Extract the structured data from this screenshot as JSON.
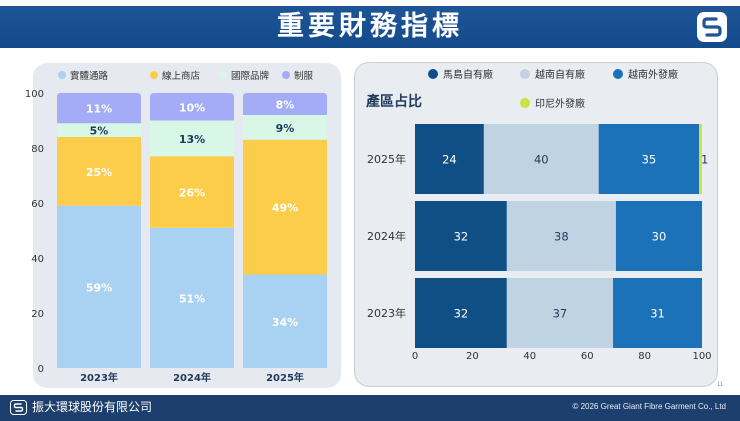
{
  "header": {
    "title": "重要財務指標"
  },
  "footer": {
    "company": "振大環球股份有限公司",
    "copyright": "© 2026 Great Giant Fibre Garment Co., Ltd",
    "page_number": "11"
  },
  "colors": {
    "header": "#1d5597",
    "footer": "#1c3f6e",
    "panel": "#e6eaf0"
  },
  "chart_data": [
    {
      "type": "bar",
      "stacked": true,
      "orientation": "vertical",
      "title": "",
      "xlabel": "",
      "ylabel": "",
      "ylim": [
        0,
        100
      ],
      "yticks": [
        "0",
        "20",
        "40",
        "60",
        "80",
        "100"
      ],
      "categories": [
        "2023年",
        "2024年",
        "2025年"
      ],
      "legend_position": "top",
      "series": [
        {
          "name": "實體通路",
          "color": "#a9d1f2",
          "values": [
            59,
            51,
            34
          ],
          "labels": [
            "59%",
            "51%",
            "34%"
          ]
        },
        {
          "name": "線上商店",
          "color": "#fbcd4b",
          "values": [
            25,
            26,
            49
          ],
          "labels": [
            "25%",
            "26%",
            "49%"
          ]
        },
        {
          "name": "國際品牌",
          "color": "#d8f7e6",
          "values": [
            5,
            13,
            9
          ],
          "labels": [
            "5%",
            "13%",
            "9%"
          ]
        },
        {
          "name": "制服",
          "color": "#a4acf8",
          "values": [
            11,
            10,
            8
          ],
          "labels": [
            "11%",
            "10%",
            "8%"
          ]
        }
      ]
    },
    {
      "type": "bar",
      "stacked": true,
      "orientation": "horizontal",
      "title": "產區占比",
      "xlabel": "",
      "ylabel": "",
      "xlim": [
        0,
        100
      ],
      "xticks": [
        "0",
        "20",
        "40",
        "60",
        "80",
        "100"
      ],
      "categories": [
        "2025年",
        "2024年",
        "2023年"
      ],
      "legend_position": "top",
      "series": [
        {
          "name": "馬島自有廠",
          "color": "#0f4f86",
          "values": [
            24,
            32,
            32
          ],
          "labels": [
            "24",
            "32",
            "32"
          ]
        },
        {
          "name": "越南自有廠",
          "color": "#c0d3e3",
          "values": [
            40,
            38,
            37
          ],
          "labels": [
            "40",
            "38",
            "37"
          ]
        },
        {
          "name": "越南外發廠",
          "color": "#1c72b8",
          "values": [
            35,
            30,
            31
          ],
          "labels": [
            "35",
            "30",
            "31"
          ]
        },
        {
          "name": "印尼外發廠",
          "color": "#cde33e",
          "values": [
            1,
            0,
            0
          ],
          "labels": [
            "1",
            "",
            ""
          ]
        }
      ]
    }
  ]
}
